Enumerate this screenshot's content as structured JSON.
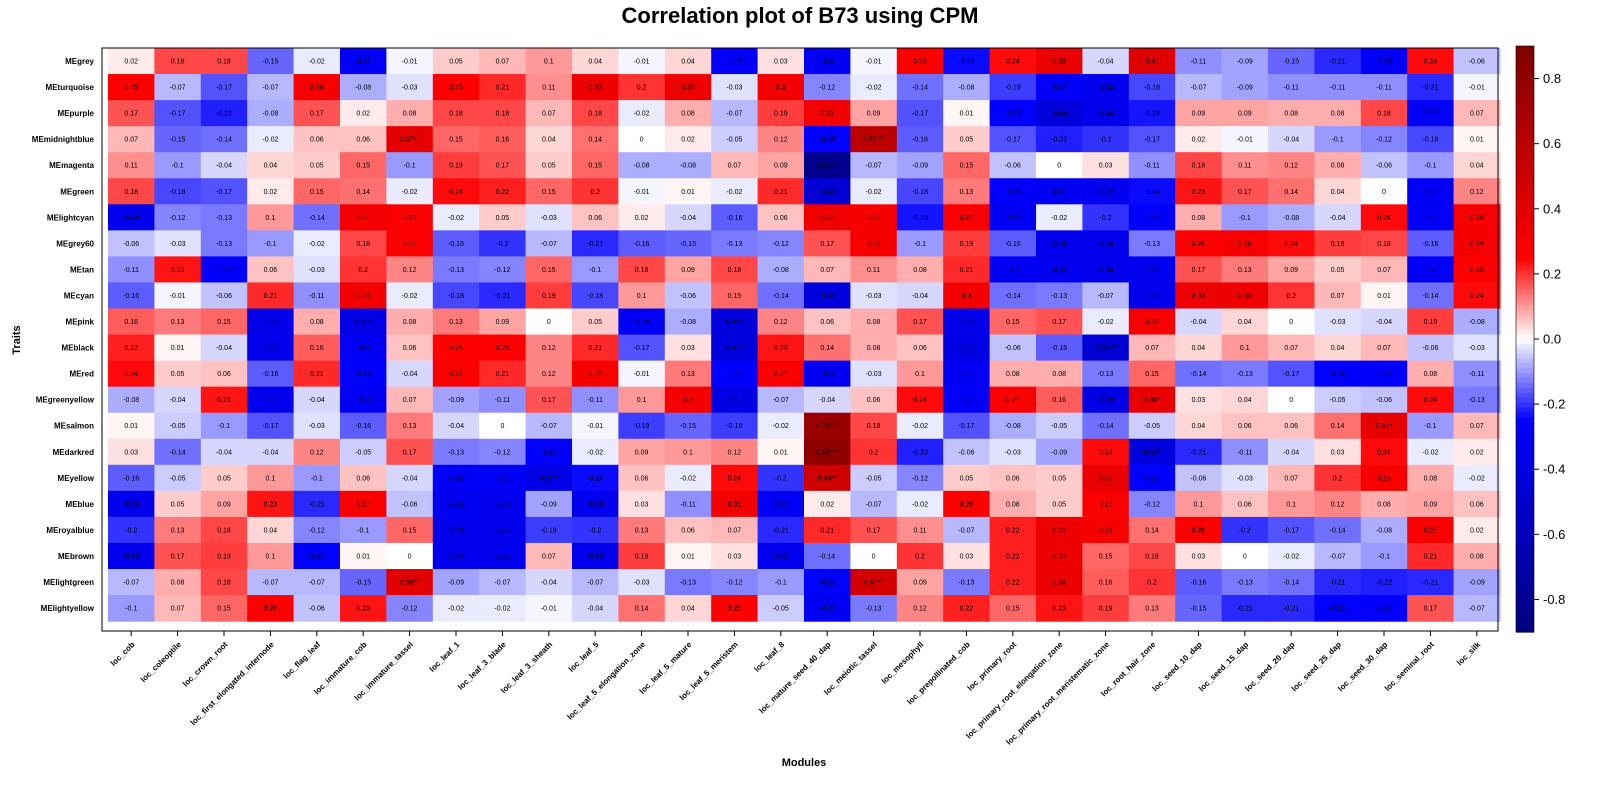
{
  "chart_data": {
    "type": "heatmap",
    "title": "Correlation plot of B73 using CPM",
    "xlabel": "Modules",
    "ylabel": "Traits",
    "rows": [
      "MEgrey",
      "MEturquoise",
      "MEpurple",
      "MEmidnightblue",
      "MEmagenta",
      "MEgreen",
      "MElightcyan",
      "MEgrey60",
      "MEtan",
      "MEcyan",
      "MEpink",
      "MEblack",
      "MEred",
      "MEgreenyellow",
      "MEsalmon",
      "MEdarkred",
      "MEyellow",
      "MEblue",
      "MEroyalblue",
      "MEbrown",
      "MElightgreen",
      "MElightyellow"
    ],
    "columns": [
      "loc_cob",
      "loc_coleoptile",
      "loc_crown_root",
      "loc_first_elongated_internode",
      "loc_flag_leaf",
      "loc_immature_cob",
      "loc_immature_tassel",
      "loc_leaf_1",
      "loc_leaf_3_blade",
      "loc_leaf_3_sheath",
      "loc_leaf_5",
      "loc_leaf_5_elongation_zone",
      "loc_leaf_5_mature",
      "loc_leaf_5_meristem",
      "loc_leaf_8",
      "loc_mature_seed_40_dap",
      "loc_meiotic_tassel",
      "loc_mesophyll",
      "loc_prepollinated_cob",
      "loc_primary_root",
      "loc_primary_root_elongation_zone",
      "loc_primary_root_meristematic_zone",
      "loc_root_hair_zone",
      "loc_seed_10_dap",
      "loc_seed_15_dap",
      "loc_seed_20_dap",
      "loc_seed_25_dap",
      "loc_seed_30_dap",
      "loc_seminal_root",
      "loc_silk"
    ],
    "values": [
      [
        0.02,
        0.18,
        0.18,
        -0.15,
        -0.02,
        -0.27,
        -0.01,
        0.05,
        0.07,
        0.1,
        0.04,
        -0.01,
        0.04,
        -0.27,
        0.03,
        -0.3,
        -0.01,
        0.26,
        -0.24,
        0.24,
        0.35,
        -0.04,
        0.4,
        -0.11,
        -0.09,
        -0.15,
        -0.21,
        -0.28,
        0.24,
        -0.06
      ],
      [
        0.25,
        -0.07,
        -0.17,
        -0.07,
        0.29,
        -0.08,
        -0.03,
        0.25,
        0.21,
        0.11,
        0.33,
        0.2,
        0.33,
        -0.03,
        0.3,
        -0.12,
        -0.02,
        -0.14,
        -0.08,
        -0.19,
        -0.27,
        -0.33,
        -0.18,
        -0.07,
        -0.09,
        -0.11,
        -0.11,
        -0.11,
        -0.21,
        -0.01
      ],
      [
        0.17,
        -0.17,
        -0.22,
        -0.08,
        0.17,
        0.02,
        0.08,
        0.18,
        0.18,
        0.07,
        0.18,
        -0.02,
        0.08,
        -0.07,
        0.19,
        0.31,
        0.09,
        -0.17,
        0.01,
        -0.25,
        -0.44,
        -0.34,
        -0.23,
        0.09,
        0.09,
        0.08,
        0.08,
        0.18,
        -0.29,
        0.07
      ],
      [
        0.07,
        -0.15,
        -0.14,
        -0.02,
        0.06,
        0.06,
        0.37,
        0.15,
        0.16,
        0.04,
        0.14,
        0,
        0.02,
        -0.05,
        0.12,
        -0.25,
        0.59,
        -0.16,
        0.05,
        -0.17,
        -0.22,
        -0.2,
        -0.17,
        0.02,
        -0.01,
        -0.04,
        -0.1,
        -0.12,
        -0.18,
        0.01
      ],
      [
        0.11,
        -0.1,
        -0.04,
        0.04,
        0.05,
        0.15,
        -0.1,
        0.19,
        0.17,
        0.05,
        0.15,
        -0.08,
        -0.08,
        0.07,
        0.09,
        -0.82,
        -0.07,
        -0.09,
        0.15,
        -0.06,
        0,
        0.03,
        -0.11,
        0.18,
        0.11,
        0.12,
        0.08,
        -0.06,
        -0.1,
        0.04
      ],
      [
        0.18,
        -0.18,
        -0.17,
        0.02,
        0.15,
        0.14,
        -0.02,
        0.24,
        0.22,
        0.15,
        0.2,
        -0.01,
        0.01,
        -0.02,
        0.21,
        -0.46,
        -0.02,
        -0.18,
        0.13,
        -0.26,
        -0.31,
        -0.32,
        -0.24,
        0.23,
        0.17,
        0.14,
        0.04,
        0,
        -0.29,
        0.12
      ],
      [
        -0.33,
        -0.12,
        -0.13,
        0.1,
        -0.14,
        0.3,
        0.27,
        -0.02,
        0.05,
        -0.03,
        0.06,
        0.02,
        -0.04,
        -0.16,
        0.06,
        0.32,
        0.28,
        -0.23,
        0.27,
        -0.29,
        -0.02,
        -0.2,
        -0.26,
        0.08,
        -0.1,
        -0.08,
        -0.04,
        0.24,
        -0.28,
        0.28
      ],
      [
        -0.06,
        -0.03,
        -0.13,
        -0.1,
        -0.02,
        0.18,
        0.27,
        -0.16,
        -0.2,
        -0.07,
        -0.21,
        -0.16,
        -0.15,
        -0.13,
        -0.12,
        0.17,
        0.29,
        -0.1,
        0.19,
        -0.16,
        -0.34,
        -0.34,
        -0.13,
        0.26,
        0.28,
        0.24,
        0.19,
        0.18,
        -0.16,
        0.29
      ],
      [
        -0.11,
        0.23,
        -0.27,
        0.06,
        -0.03,
        0.2,
        0.12,
        -0.13,
        -0.12,
        0.15,
        -0.1,
        0.18,
        0.09,
        0.18,
        -0.08,
        0.07,
        0.11,
        0.08,
        0.21,
        -0.3,
        -0.32,
        -0.34,
        -0.32,
        0.17,
        0.13,
        0.09,
        0.05,
        0.07,
        -0.29,
        0.26
      ],
      [
        -0.16,
        -0.01,
        -0.06,
        0.21,
        -0.11,
        0.31,
        -0.02,
        -0.18,
        -0.21,
        0.19,
        -0.18,
        0.1,
        -0.06,
        0.15,
        -0.14,
        -0.43,
        -0.03,
        -0.04,
        0.3,
        -0.14,
        -0.13,
        -0.07,
        -0.33,
        0.33,
        0.33,
        0.2,
        0.07,
        0.01,
        -0.14,
        0.24
      ],
      [
        0.16,
        0.13,
        0.15,
        -0.36,
        0.08,
        -0.37,
        0.08,
        0.13,
        0.09,
        0,
        0.05,
        -0.29,
        -0.08,
        -0.42,
        0.12,
        0.06,
        0.08,
        0.17,
        -0.36,
        0.15,
        0.17,
        -0.02,
        0.29,
        -0.04,
        0.04,
        0,
        -0.03,
        -0.04,
        0.19,
        -0.08
      ],
      [
        0.22,
        0.01,
        -0.04,
        -0.35,
        0.16,
        -0.3,
        0.06,
        0.25,
        0.25,
        0.12,
        0.21,
        -0.17,
        0.03,
        -0.41,
        0.23,
        0.14,
        0.08,
        0.06,
        -0.38,
        -0.06,
        -0.16,
        -0.47,
        0.07,
        0.04,
        0.1,
        0.07,
        0.04,
        0.07,
        -0.06,
        -0.03
      ],
      [
        0.24,
        0.05,
        0.06,
        -0.16,
        0.21,
        -0.25,
        -0.04,
        0.27,
        0.21,
        0.12,
        0.29,
        -0.01,
        0.13,
        -0.25,
        0.27,
        -0.3,
        -0.03,
        0.1,
        -0.3,
        0.08,
        0.08,
        -0.13,
        0.15,
        -0.14,
        -0.13,
        -0.17,
        -0.25,
        -0.26,
        0.08,
        -0.11
      ],
      [
        -0.08,
        -0.04,
        0.23,
        -0.33,
        -0.04,
        -0.3,
        0.07,
        -0.09,
        -0.11,
        0.17,
        -0.11,
        0.1,
        0.3,
        -0.38,
        -0.07,
        -0.04,
        0.06,
        0.24,
        -0.28,
        0.27,
        0.16,
        -0.38,
        0.36,
        0.03,
        0.04,
        0,
        -0.05,
        -0.06,
        0.24,
        -0.13
      ],
      [
        0.01,
        -0.05,
        -0.1,
        -0.17,
        -0.03,
        -0.16,
        0.13,
        -0.04,
        0,
        -0.07,
        -0.01,
        -0.19,
        -0.15,
        -0.19,
        -0.02,
        0.76,
        0.18,
        -0.02,
        -0.17,
        -0.08,
        -0.05,
        -0.14,
        -0.05,
        0.04,
        0.06,
        0.06,
        0.14,
        0.37,
        -0.1,
        0.07
      ],
      [
        0.03,
        -0.14,
        -0.04,
        -0.04,
        0.12,
        -0.05,
        0.17,
        -0.13,
        -0.12,
        -0.25,
        -0.02,
        0.09,
        0.1,
        0.12,
        0.01,
        0.82,
        0.2,
        -0.22,
        -0.06,
        -0.03,
        -0.09,
        0.24,
        -0.41,
        -0.21,
        -0.11,
        -0.04,
        0.03,
        0.24,
        -0.02,
        0.02
      ],
      [
        -0.16,
        -0.05,
        0.05,
        0.1,
        -0.1,
        0.06,
        -0.04,
        -0.28,
        -0.3,
        -0.37,
        -0.24,
        0.06,
        -0.02,
        0.24,
        -0.2,
        0.49,
        -0.05,
        -0.12,
        0.05,
        0.06,
        0.05,
        0.36,
        -0.25,
        -0.06,
        -0.03,
        0.07,
        0.2,
        0.28,
        0.08,
        -0.02
      ],
      [
        -0.33,
        0.05,
        0.09,
        0.23,
        -0.21,
        0.27,
        -0.06,
        -0.32,
        -0.32,
        -0.09,
        -0.33,
        0.03,
        -0.11,
        0.31,
        -0.3,
        0.02,
        -0.07,
        -0.02,
        0.26,
        0.08,
        0.05,
        0.27,
        -0.12,
        0.1,
        0.06,
        0.1,
        0.12,
        0.08,
        0.09,
        0.06
      ],
      [
        -0.2,
        0.13,
        0.18,
        0.04,
        -0.12,
        -0.1,
        0.15,
        -0.34,
        -0.33,
        -0.19,
        -0.2,
        0.13,
        0.06,
        0.07,
        -0.21,
        0.21,
        0.17,
        0.11,
        -0.07,
        0.22,
        0.33,
        0.29,
        0.14,
        0.26,
        -0.2,
        -0.17,
        -0.14,
        -0.08,
        0.27,
        0.02
      ],
      [
        -0.33,
        0.17,
        0.19,
        0.1,
        -0.26,
        0.01,
        0,
        -0.33,
        -0.33,
        0.07,
        -0.33,
        0.19,
        0.01,
        0.03,
        -0.32,
        -0.14,
        0,
        0.2,
        0.03,
        0.22,
        0.33,
        0.15,
        0.18,
        0.03,
        0,
        -0.02,
        -0.07,
        -0.1,
        0.21,
        0.08
      ],
      [
        -0.07,
        0.08,
        0.18,
        -0.07,
        -0.07,
        -0.15,
        0.39,
        -0.09,
        -0.07,
        -0.04,
        -0.07,
        -0.03,
        -0.13,
        -0.12,
        -0.1,
        -0.25,
        0.47,
        0.09,
        -0.13,
        0.22,
        0.34,
        0.16,
        0.2,
        -0.16,
        -0.13,
        -0.14,
        -0.21,
        -0.22,
        -0.21,
        -0.09
      ],
      [
        -0.1,
        0.07,
        0.15,
        0.26,
        -0.06,
        0.23,
        -0.12,
        -0.02,
        -0.02,
        -0.01,
        -0.04,
        0.14,
        0.04,
        0.25,
        -0.05,
        -0.3,
        -0.13,
        0.12,
        0.22,
        0.15,
        0.23,
        0.19,
        0.13,
        -0.15,
        -0.21,
        -0.21,
        -0.25,
        -0.26,
        0.17,
        -0.07
      ]
    ],
    "significance": {
      "0,22": "*",
      "3,6": "**",
      "3,16": "***",
      "4,15": "***",
      "10,5": "*",
      "10,13": "**",
      "11,13": "**",
      "11,21": "**",
      "13,22": "*",
      "14,15": "***",
      "14,27": "*",
      "15,15": "***",
      "15,22": "**",
      "16,9": "*",
      "16,15": "**",
      "20,6": "**",
      "20,16": "**"
    },
    "color_scale": {
      "low": "#00007f",
      "mid_low": "#0000ff",
      "mid": "#ffffff",
      "mid_high": "#ff0000",
      "high": "#7f0000"
    },
    "legend_range": [
      -0.9,
      0.9
    ],
    "legend_ticks": [
      -0.8,
      -0.6,
      -0.4,
      -0.2,
      0.0,
      0.2,
      0.4,
      0.6,
      0.8
    ],
    "legend_tick_labels": [
      "-0.8",
      "-0.6",
      "-0.4",
      "-0.2",
      "0.0",
      "0.2",
      "0.4",
      "0.6",
      "0.8"
    ],
    "legend_position": "right"
  }
}
